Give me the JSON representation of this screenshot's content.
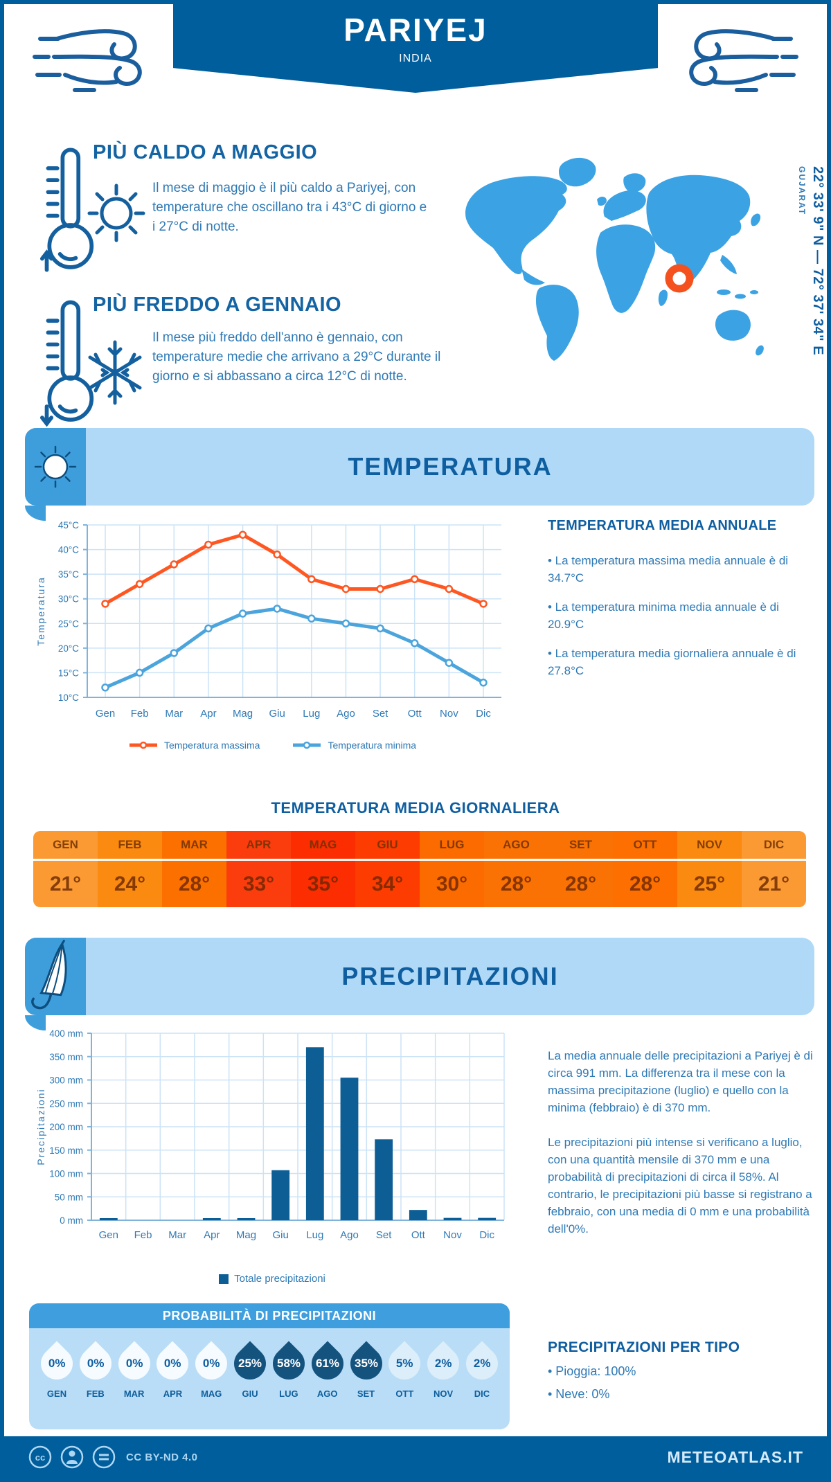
{
  "header": {
    "title": "PARIYEJ",
    "subtitle": "INDIA"
  },
  "highlights": {
    "hot": {
      "title": "PIÙ CALDO A MAGGIO",
      "text": "Il mese di maggio è il più caldo a Pariyej, con temperature che oscillano tra i 43°C di giorno e i 27°C di notte."
    },
    "cold": {
      "title": "PIÙ FREDDO A GENNAIO",
      "text": "Il mese più freddo dell'anno è gennaio, con temperature medie che arrivano a 29°C durante il giorno e si abbassano a circa 12°C di notte."
    }
  },
  "map": {
    "coordinates": "22° 33' 9\" N — 72° 37' 34\" E",
    "region": "GUJARAT",
    "land_color": "#3BA2E3",
    "marker_color": "#F4511E"
  },
  "sections": {
    "temperature": {
      "title": "TEMPERATURA"
    },
    "precipitation": {
      "title": "PRECIPITAZIONI"
    }
  },
  "chart_data": [
    {
      "type": "line",
      "x": [
        "Gen",
        "Feb",
        "Mar",
        "Apr",
        "Mag",
        "Giu",
        "Lug",
        "Ago",
        "Set",
        "Ott",
        "Nov",
        "Dic"
      ],
      "ylabel": "Temperatura",
      "ylim": [
        10,
        45
      ],
      "ytick_step": 5,
      "ytick_suffix": "°C",
      "grid": true,
      "legend_position": "bottom",
      "series": [
        {
          "name": "Temperatura massima",
          "color": "#FF5722",
          "values": [
            29,
            33,
            37,
            41,
            43,
            39,
            34,
            32,
            32,
            34,
            32,
            29
          ]
        },
        {
          "name": "Temperatura minima",
          "color": "#4BA4DC",
          "values": [
            12,
            15,
            19,
            24,
            27,
            28,
            26,
            25,
            24,
            21,
            17,
            13
          ]
        }
      ]
    },
    {
      "type": "bar",
      "categories": [
        "Gen",
        "Feb",
        "Mar",
        "Apr",
        "Mag",
        "Giu",
        "Lug",
        "Ago",
        "Set",
        "Ott",
        "Nov",
        "Dic"
      ],
      "values": [
        1,
        0,
        0,
        1,
        2,
        107,
        370,
        305,
        173,
        22,
        5,
        5
      ],
      "series_name": "Totale precipitazioni",
      "bar_color": "#0E5E96",
      "ylabel": "Precipitazioni",
      "ylim": [
        0,
        400
      ],
      "ytick_step": 50,
      "ytick_suffix": " mm",
      "grid": true,
      "legend_position": "bottom"
    }
  ],
  "annual_summary": {
    "title": "TEMPERATURA MEDIA ANNUALE",
    "bullets": [
      "• La temperatura massima media annuale è di 34.7°C",
      "• La temperatura minima media annuale è di 20.9°C",
      "• La temperatura media giornaliera annuale è di 27.8°C"
    ]
  },
  "daily_table": {
    "title": "TEMPERATURA MEDIA GIORNALIERA",
    "months": [
      {
        "label": "GEN",
        "value": "21°",
        "bg": "#FB9A32"
      },
      {
        "label": "FEB",
        "value": "24°",
        "bg": "#FB8A10"
      },
      {
        "label": "MAR",
        "value": "28°",
        "bg": "#FC7000"
      },
      {
        "label": "APR",
        "value": "33°",
        "bg": "#FB3D0E"
      },
      {
        "label": "MAG",
        "value": "35°",
        "bg": "#FC2D00"
      },
      {
        "label": "GIU",
        "value": "34°",
        "bg": "#FC3C00"
      },
      {
        "label": "LUG",
        "value": "30°",
        "bg": "#FC6B00"
      },
      {
        "label": "AGO",
        "value": "28°",
        "bg": "#FB7204"
      },
      {
        "label": "SET",
        "value": "28°",
        "bg": "#FB7204"
      },
      {
        "label": "OTT",
        "value": "28°",
        "bg": "#FC6F00"
      },
      {
        "label": "NOV",
        "value": "25°",
        "bg": "#FB8A10"
      },
      {
        "label": "DIC",
        "value": "21°",
        "bg": "#FB9A32"
      }
    ]
  },
  "precip_text": {
    "p1": "La media annuale delle precipitazioni a Pariyej è di circa 991 mm. La differenza tra il mese con la massima precipitazione (luglio) e quello con la minima (febbraio) è di 370 mm.",
    "p2": "Le precipitazioni più intense si verificano a luglio, con una quantità mensile di 370 mm e una probabilità di precipitazioni di circa il 58%. Al contrario, le precipitazioni più basse si registrano a febbraio, con una media di 0 mm e una probabilità dell'0%."
  },
  "probability": {
    "title": "PROBABILITÀ DI PRECIPITAZIONI",
    "months": [
      {
        "label": "GEN",
        "value": "0%",
        "tone": "white"
      },
      {
        "label": "FEB",
        "value": "0%",
        "tone": "white"
      },
      {
        "label": "MAR",
        "value": "0%",
        "tone": "white"
      },
      {
        "label": "APR",
        "value": "0%",
        "tone": "white"
      },
      {
        "label": "MAG",
        "value": "0%",
        "tone": "white"
      },
      {
        "label": "GIU",
        "value": "25%",
        "tone": "dark"
      },
      {
        "label": "LUG",
        "value": "58%",
        "tone": "dark"
      },
      {
        "label": "AGO",
        "value": "61%",
        "tone": "dark"
      },
      {
        "label": "SET",
        "value": "35%",
        "tone": "dark"
      },
      {
        "label": "OTT",
        "value": "5%",
        "tone": "light"
      },
      {
        "label": "NOV",
        "value": "2%",
        "tone": "light"
      },
      {
        "label": "DIC",
        "value": "2%",
        "tone": "light"
      }
    ]
  },
  "precip_by_type": {
    "title": "PRECIPITAZIONI PER TIPO",
    "bullets": [
      "• Pioggia: 100%",
      "• Neve: 0%"
    ]
  },
  "footer": {
    "license": "CC BY-ND 4.0",
    "site": "METEOATLAS.IT"
  }
}
